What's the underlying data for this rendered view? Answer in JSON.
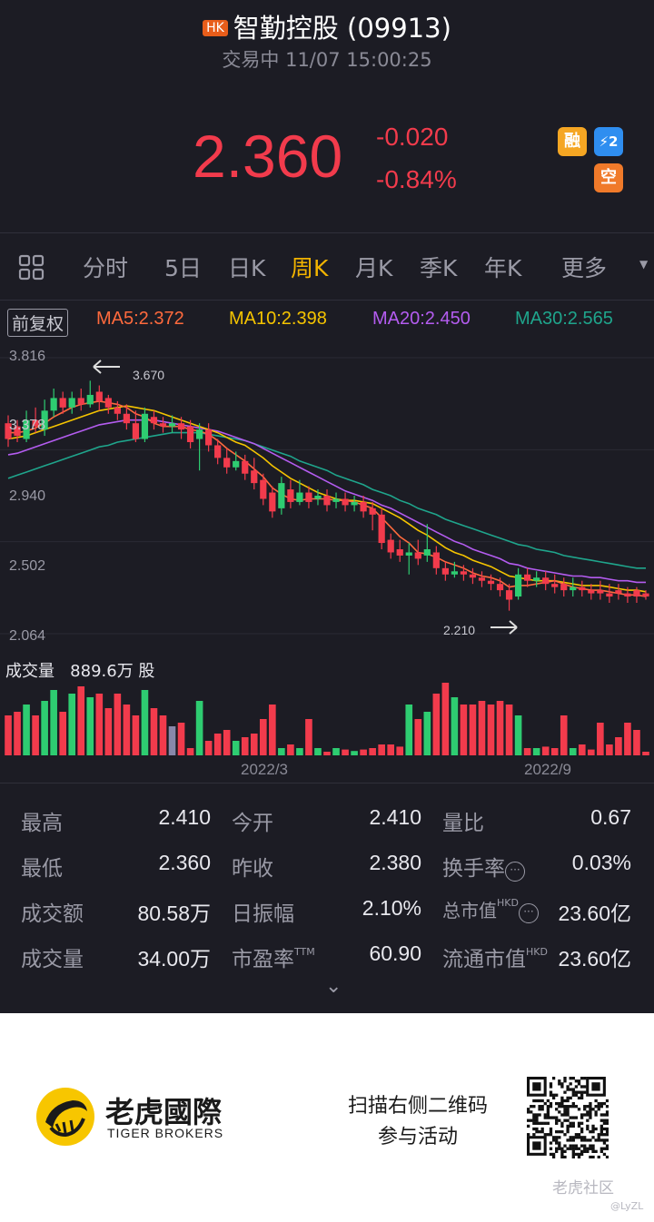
{
  "header": {
    "market_badge": "HK",
    "title": "智勤控股 (09913)",
    "status": "交易中 11/07 15:00:25"
  },
  "quote": {
    "price": "2.360",
    "change": "-0.020",
    "change_pct": "-0.84%",
    "tags": [
      {
        "label": "融",
        "color": "#f5a623"
      },
      {
        "label": "⚡2",
        "color": "#2f8ef0"
      },
      {
        "label": "空",
        "color": "#f07a2a"
      }
    ]
  },
  "tabs": {
    "grid_icon": "grid-icon",
    "items": [
      "分时",
      "5日",
      "日K",
      "周K",
      "月K",
      "季K",
      "年K",
      "更多"
    ],
    "active": "周K"
  },
  "chart_header": {
    "adjust_button": "前复权",
    "ma5": "MA5:2.372",
    "ma10": "MA10:2.398",
    "ma20": "MA20:2.450",
    "ma30": "MA30:2.565"
  },
  "colors": {
    "up": "#2ecc71",
    "down": "#f23b4c",
    "ma5": "#ff6a3d",
    "ma10": "#f5c400",
    "ma20": "#b45cf0",
    "ma30": "#1fa58c",
    "background": "#1c1c24"
  },
  "chart_data": {
    "type": "candlestick",
    "y_ticks": [
      "3.816",
      "2.940",
      "2.502",
      "2.064"
    ],
    "ylim": [
      2.064,
      3.816
    ],
    "annotation_high": "3.670",
    "annotation_low": "2.210",
    "overlap_label": "3.378",
    "x_labels": [
      "2022/3",
      "2022/9"
    ],
    "candles": [
      [
        3.4,
        3.3,
        3.45,
        3.25
      ],
      [
        3.38,
        3.32,
        3.42,
        3.28
      ],
      [
        3.3,
        3.42,
        3.48,
        3.28
      ],
      [
        3.42,
        3.38,
        3.5,
        3.34
      ],
      [
        3.36,
        3.48,
        3.55,
        3.32
      ],
      [
        3.48,
        3.56,
        3.62,
        3.44
      ],
      [
        3.56,
        3.5,
        3.6,
        3.46
      ],
      [
        3.5,
        3.56,
        3.6,
        3.46
      ],
      [
        3.56,
        3.52,
        3.62,
        3.48
      ],
      [
        3.52,
        3.58,
        3.67,
        3.5
      ],
      [
        3.6,
        3.54,
        3.64,
        3.48
      ],
      [
        3.56,
        3.5,
        3.58,
        3.46
      ],
      [
        3.5,
        3.46,
        3.54,
        3.42
      ],
      [
        3.46,
        3.4,
        3.52,
        3.36
      ],
      [
        3.4,
        3.3,
        3.48,
        3.28
      ],
      [
        3.3,
        3.46,
        3.5,
        3.28
      ],
      [
        3.44,
        3.4,
        3.48,
        3.36
      ],
      [
        3.4,
        3.38,
        3.44,
        3.34
      ],
      [
        3.38,
        3.4,
        3.45,
        3.34
      ],
      [
        3.4,
        3.36,
        3.44,
        3.3
      ],
      [
        3.38,
        3.28,
        3.42,
        3.24
      ],
      [
        3.3,
        3.36,
        3.4,
        3.1
      ],
      [
        3.36,
        3.26,
        3.4,
        3.22
      ],
      [
        3.26,
        3.18,
        3.3,
        3.14
      ],
      [
        3.18,
        3.12,
        3.24,
        3.08
      ],
      [
        3.12,
        3.16,
        3.22,
        3.1
      ],
      [
        3.16,
        3.08,
        3.2,
        3.04
      ],
      [
        3.1,
        3.02,
        3.18,
        2.98
      ],
      [
        3.04,
        2.92,
        3.08,
        2.88
      ],
      [
        2.96,
        2.84,
        3.0,
        2.8
      ],
      [
        2.86,
        3.02,
        3.06,
        2.82
      ],
      [
        2.98,
        2.9,
        3.04,
        2.86
      ],
      [
        2.9,
        2.96,
        3.04,
        2.88
      ],
      [
        2.96,
        2.9,
        3.0,
        2.86
      ],
      [
        2.92,
        2.94,
        2.98,
        2.88
      ],
      [
        2.94,
        2.88,
        2.98,
        2.84
      ],
      [
        2.9,
        2.92,
        2.96,
        2.86
      ],
      [
        2.92,
        2.88,
        2.96,
        2.84
      ],
      [
        2.88,
        2.9,
        2.94,
        2.84
      ],
      [
        2.9,
        2.84,
        2.94,
        2.8
      ],
      [
        2.86,
        2.82,
        2.9,
        2.72
      ],
      [
        2.82,
        2.64,
        2.86,
        2.6
      ],
      [
        2.66,
        2.58,
        2.7,
        2.54
      ],
      [
        2.6,
        2.56,
        2.66,
        2.52
      ],
      [
        2.56,
        2.58,
        2.64,
        2.44
      ],
      [
        2.58,
        2.54,
        2.66,
        2.5
      ],
      [
        2.56,
        2.6,
        2.76,
        2.52
      ],
      [
        2.58,
        2.48,
        2.62,
        2.44
      ],
      [
        2.48,
        2.44,
        2.52,
        2.4
      ],
      [
        2.44,
        2.46,
        2.52,
        2.42
      ],
      [
        2.46,
        2.44,
        2.5,
        2.4
      ],
      [
        2.44,
        2.42,
        2.48,
        2.38
      ],
      [
        2.42,
        2.4,
        2.46,
        2.36
      ],
      [
        2.4,
        2.38,
        2.44,
        2.34
      ],
      [
        2.38,
        2.34,
        2.42,
        2.3
      ],
      [
        2.34,
        2.28,
        2.38,
        2.21
      ],
      [
        2.3,
        2.44,
        2.48,
        2.28
      ],
      [
        2.44,
        2.4,
        2.48,
        2.36
      ],
      [
        2.4,
        2.42,
        2.46,
        2.36
      ],
      [
        2.42,
        2.38,
        2.46,
        2.34
      ],
      [
        2.38,
        2.36,
        2.44,
        2.32
      ],
      [
        2.38,
        2.34,
        2.42,
        2.3
      ],
      [
        2.34,
        2.36,
        2.42,
        2.3
      ],
      [
        2.36,
        2.34,
        2.4,
        2.3
      ],
      [
        2.34,
        2.32,
        2.38,
        2.28
      ],
      [
        2.34,
        2.32,
        2.4,
        2.28
      ],
      [
        2.32,
        2.3,
        2.38,
        2.26
      ],
      [
        2.34,
        2.32,
        2.38,
        2.28
      ],
      [
        2.32,
        2.3,
        2.36,
        2.26
      ],
      [
        2.34,
        2.3,
        2.36,
        2.26
      ],
      [
        2.32,
        2.3,
        2.34,
        2.28
      ]
    ],
    "ma5": [
      3.34,
      3.34,
      3.35,
      3.37,
      3.4,
      3.44,
      3.47,
      3.5,
      3.52,
      3.53,
      3.54,
      3.53,
      3.52,
      3.5,
      3.46,
      3.44,
      3.4,
      3.38,
      3.38,
      3.38,
      3.36,
      3.35,
      3.33,
      3.29,
      3.24,
      3.2,
      3.16,
      3.11,
      3.06,
      2.99,
      2.95,
      2.92,
      2.91,
      2.92,
      2.92,
      2.92,
      2.91,
      2.91,
      2.9,
      2.88,
      2.86,
      2.8,
      2.74,
      2.68,
      2.64,
      2.58,
      2.57,
      2.55,
      2.52,
      2.5,
      2.48,
      2.45,
      2.43,
      2.42,
      2.4,
      2.36,
      2.37,
      2.37,
      2.38,
      2.39,
      2.4,
      2.38,
      2.36,
      2.35,
      2.34,
      2.34,
      2.33,
      2.32,
      2.31,
      2.31,
      2.3
    ],
    "ma10": [
      3.3,
      3.31,
      3.32,
      3.34,
      3.36,
      3.38,
      3.4,
      3.42,
      3.44,
      3.46,
      3.48,
      3.49,
      3.5,
      3.51,
      3.5,
      3.49,
      3.48,
      3.46,
      3.44,
      3.42,
      3.4,
      3.38,
      3.36,
      3.34,
      3.31,
      3.28,
      3.26,
      3.22,
      3.18,
      3.13,
      3.09,
      3.05,
      3.02,
      2.99,
      2.96,
      2.94,
      2.92,
      2.91,
      2.91,
      2.9,
      2.89,
      2.86,
      2.83,
      2.8,
      2.76,
      2.72,
      2.69,
      2.65,
      2.61,
      2.58,
      2.56,
      2.53,
      2.51,
      2.49,
      2.46,
      2.43,
      2.42,
      2.41,
      2.4,
      2.4,
      2.4,
      2.39,
      2.38,
      2.37,
      2.37,
      2.37,
      2.36,
      2.35,
      2.34,
      2.34,
      2.33
    ],
    "ma20": [
      3.2,
      3.21,
      3.23,
      3.25,
      3.27,
      3.29,
      3.31,
      3.33,
      3.35,
      3.37,
      3.39,
      3.4,
      3.41,
      3.42,
      3.42,
      3.42,
      3.42,
      3.41,
      3.4,
      3.39,
      3.38,
      3.37,
      3.36,
      3.35,
      3.33,
      3.31,
      3.29,
      3.27,
      3.24,
      3.21,
      3.18,
      3.15,
      3.12,
      3.09,
      3.06,
      3.03,
      3.0,
      2.97,
      2.95,
      2.93,
      2.91,
      2.88,
      2.86,
      2.83,
      2.8,
      2.77,
      2.74,
      2.71,
      2.68,
      2.65,
      2.63,
      2.6,
      2.58,
      2.56,
      2.54,
      2.51,
      2.5,
      2.48,
      2.47,
      2.46,
      2.45,
      2.44,
      2.43,
      2.43,
      2.42,
      2.42,
      2.41,
      2.4,
      2.4,
      2.39,
      2.39
    ],
    "ma30": [
      3.05,
      3.07,
      3.09,
      3.11,
      3.13,
      3.15,
      3.17,
      3.19,
      3.21,
      3.23,
      3.25,
      3.26,
      3.28,
      3.29,
      3.3,
      3.31,
      3.32,
      3.33,
      3.34,
      3.34,
      3.34,
      3.34,
      3.33,
      3.32,
      3.31,
      3.3,
      3.29,
      3.27,
      3.25,
      3.23,
      3.21,
      3.19,
      3.16,
      3.14,
      3.12,
      3.1,
      3.07,
      3.05,
      3.03,
      3.01,
      2.98,
      2.96,
      2.94,
      2.91,
      2.89,
      2.86,
      2.84,
      2.82,
      2.79,
      2.77,
      2.75,
      2.73,
      2.71,
      2.69,
      2.67,
      2.65,
      2.63,
      2.62,
      2.6,
      2.59,
      2.58,
      2.56,
      2.55,
      2.54,
      2.53,
      2.52,
      2.51,
      2.5,
      2.49,
      2.48,
      2.48
    ],
    "volume": [
      0.55,
      0.6,
      0.7,
      0.55,
      0.75,
      0.9,
      0.6,
      0.85,
      0.95,
      0.8,
      0.85,
      0.65,
      0.85,
      0.7,
      0.55,
      0.9,
      0.65,
      0.55,
      0.4,
      0.45,
      0.1,
      0.75,
      0.2,
      0.3,
      0.35,
      0.2,
      0.25,
      0.3,
      0.5,
      0.7,
      0.1,
      0.15,
      0.1,
      0.5,
      0.1,
      0.05,
      0.1,
      0.08,
      0.06,
      0.08,
      0.1,
      0.15,
      0.15,
      0.12,
      0.7,
      0.5,
      0.6,
      0.85,
      1.0,
      0.8,
      0.7,
      0.7,
      0.75,
      0.7,
      0.75,
      0.7,
      0.55,
      0.1,
      0.1,
      0.12,
      0.1,
      0.55,
      0.1,
      0.15,
      0.08,
      0.45,
      0.15,
      0.25,
      0.45,
      0.35,
      0.05
    ]
  },
  "volume_header": {
    "label": "成交量",
    "value": "889.6万 股"
  },
  "stats": [
    {
      "k1": "最高",
      "v1": "2.410",
      "k2": "今开",
      "v2": "2.410",
      "k3": "量比",
      "v3": "0.67"
    },
    {
      "k1": "最低",
      "v1": "2.360",
      "k2": "昨收",
      "v2": "2.380",
      "k3": "换手率",
      "v3": "0.03%"
    },
    {
      "k1": "成交额",
      "v1": "80.58万",
      "k2": "日振幅",
      "v2": "2.10%",
      "k3": "总市值",
      "v3": "23.60亿"
    },
    {
      "k1": "成交量",
      "v1": "34.00万",
      "k2": "市盈率",
      "v2": "60.90",
      "k3": "流通市值",
      "v3": "23.60亿"
    }
  ],
  "stat_sups": {
    "ttm": "TTM",
    "hkd": "HKD"
  },
  "info_icon": "···",
  "expand_icon": "⌄",
  "footer": {
    "brand_cn": "老虎國際",
    "brand_en": "TIGER BROKERS",
    "scan_line1": "扫描右侧二维码",
    "scan_line2": "参与活动",
    "watermark": "老虎社区",
    "watermark_user": "@LyZL"
  }
}
